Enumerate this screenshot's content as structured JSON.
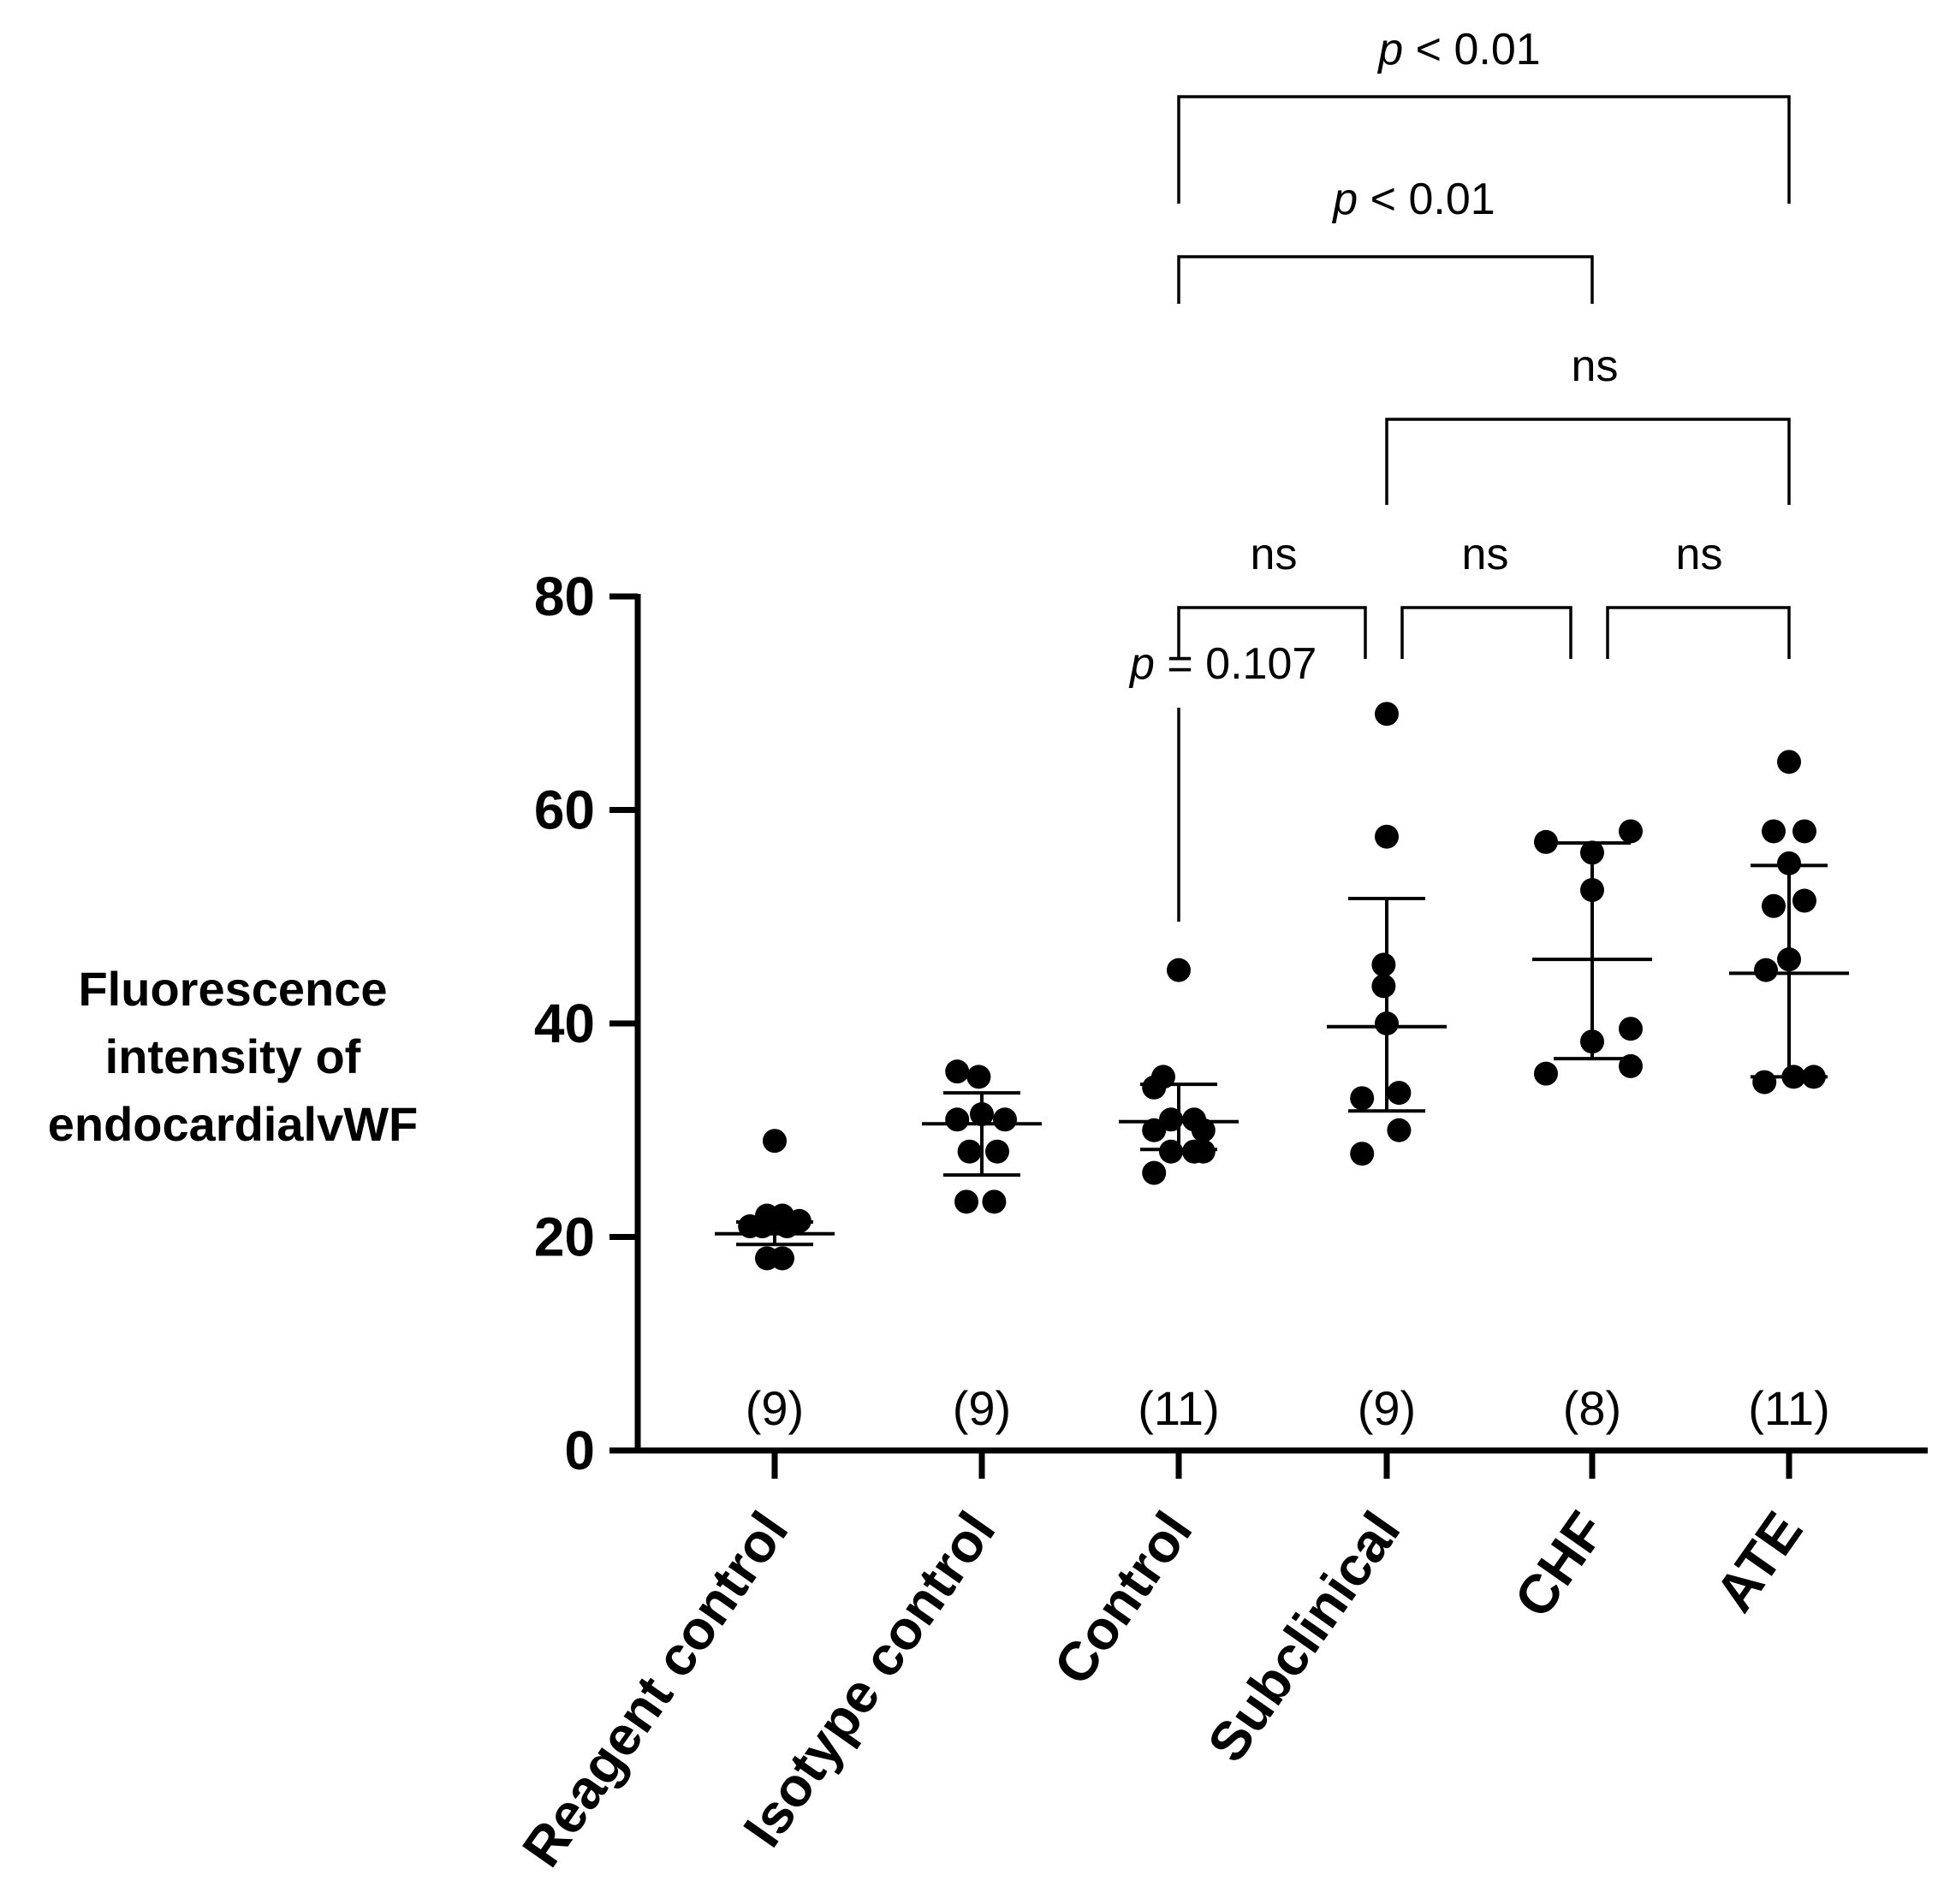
{
  "chart_data": {
    "type": "scatter",
    "subtype": "dot-plot-with-mean-and-sd",
    "title": "",
    "ylabel_lines": [
      "Fluorescence",
      "intensity of",
      "endocardialvWF"
    ],
    "ylim": [
      0,
      80
    ],
    "yticks": [
      "0",
      "20",
      "40",
      "60",
      "80"
    ],
    "grid": false,
    "legend": "none",
    "marker_color": "#000000",
    "categories": [
      "Reagent control",
      "Isotype control",
      "Control",
      "Subclinical",
      "CHF",
      "ATE"
    ],
    "n_labels": [
      "(9)",
      "(9)",
      "(11)",
      "(9)",
      "(8)",
      "(11)"
    ],
    "groups": [
      {
        "name": "Reagent control",
        "points": [
          [
            0,
            29
          ],
          [
            -0.05,
            22
          ],
          [
            0.05,
            22
          ],
          [
            -0.16,
            21
          ],
          [
            -0.08,
            21
          ],
          [
            0.08,
            21
          ],
          [
            0.16,
            21.5
          ],
          [
            -0.05,
            18
          ],
          [
            0.05,
            18
          ]
        ],
        "mean": 20.3,
        "sd_low": 19.3,
        "sd_high": 21.4
      },
      {
        "name": "Isotype control",
        "points": [
          [
            -0.16,
            35.5
          ],
          [
            -0.02,
            35
          ],
          [
            -0.16,
            31
          ],
          [
            0,
            31.5
          ],
          [
            0.15,
            31
          ],
          [
            -0.08,
            28
          ],
          [
            0.1,
            28
          ],
          [
            -0.1,
            23.3
          ],
          [
            0.08,
            23.3
          ]
        ],
        "mean": 30.6,
        "sd_low": 25.8,
        "sd_high": 33.5
      },
      {
        "name": "Control",
        "points": [
          [
            0,
            45
          ],
          [
            -0.16,
            34
          ],
          [
            -0.05,
            31
          ],
          [
            -0.1,
            35
          ],
          [
            -0.16,
            30
          ],
          [
            0.1,
            31
          ],
          [
            0.16,
            30
          ],
          [
            -0.16,
            26
          ],
          [
            -0.05,
            28
          ],
          [
            0.1,
            28
          ],
          [
            0.16,
            28
          ]
        ],
        "mean": 30.8,
        "sd_low": 28.2,
        "sd_high": 34.3
      },
      {
        "name": "Subclinical",
        "points": [
          [
            0,
            69
          ],
          [
            0,
            57.5
          ],
          [
            -0.02,
            45.5
          ],
          [
            -0.02,
            43.5
          ],
          [
            0,
            40
          ],
          [
            -0.16,
            33
          ],
          [
            0.08,
            33.5
          ],
          [
            -0.16,
            27.8
          ],
          [
            0.08,
            30
          ]
        ],
        "mean": 39.7,
        "sd_low": 31.8,
        "sd_high": 51.7
      },
      {
        "name": "CHF",
        "points": [
          [
            -0.3,
            57
          ],
          [
            0.25,
            58
          ],
          [
            0,
            56
          ],
          [
            0,
            52.5
          ],
          [
            0.25,
            39.5
          ],
          [
            0,
            38.3
          ],
          [
            -0.3,
            35.3
          ],
          [
            0.25,
            36
          ]
        ],
        "mean": 46,
        "sd_low": 36.7,
        "sd_high": 56.9
      },
      {
        "name": "ATE",
        "points": [
          [
            0,
            64.5
          ],
          [
            -0.1,
            58
          ],
          [
            0.1,
            58
          ],
          [
            0,
            55
          ],
          [
            -0.1,
            51
          ],
          [
            0.1,
            51.5
          ],
          [
            0,
            46
          ],
          [
            -0.15,
            45
          ],
          [
            -0.16,
            34.5
          ],
          [
            0.03,
            35
          ],
          [
            0.16,
            35
          ]
        ],
        "mean": 44.7,
        "sd_low": 35,
        "sd_high": 54.8
      }
    ],
    "comparisons": [
      {
        "left": "Control",
        "right": "ATE",
        "label_p": "p",
        "label_rest": " < 0.01"
      },
      {
        "left": "Control",
        "right": "CHF",
        "label_p": "p",
        "label_rest": " < 0.01"
      },
      {
        "left": "Subclinical",
        "right": "ATE",
        "label_p": "",
        "label_rest": "ns"
      },
      {
        "left": "Control",
        "right": "Subclinical",
        "label_p": "",
        "label_rest": "ns"
      },
      {
        "left": "Subclinical",
        "right": "CHF",
        "label_p": "",
        "label_rest": "ns"
      },
      {
        "left": "CHF",
        "right": "ATE",
        "label_p": "",
        "label_rest": "ns"
      },
      {
        "left": "Control",
        "right": "Control",
        "label_p": "p",
        "label_rest": " = 0.107"
      }
    ]
  }
}
